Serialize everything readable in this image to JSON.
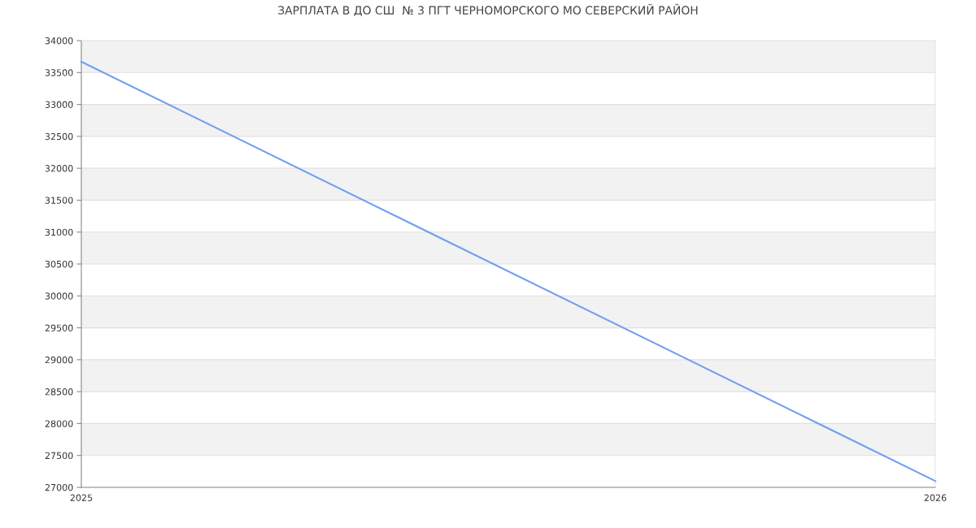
{
  "chart_data": {
    "type": "line",
    "title": "ЗАРПЛАТА В ДО СШ  № 3 ПГТ ЧЕРНОМОРСКОГО МО СЕВЕРСКИЙ РАЙОН",
    "x": [
      2025,
      2026
    ],
    "series": [
      {
        "color": "#6f9ff5",
        "values": [
          33670,
          27100
        ]
      }
    ],
    "xlim": [
      2025,
      2026
    ],
    "xticks": [
      2025,
      2026
    ],
    "ylim": [
      27000,
      34000
    ],
    "yticks": [
      27000,
      27500,
      28000,
      28500,
      29000,
      29500,
      30000,
      30500,
      31000,
      31500,
      32000,
      32500,
      33000,
      33500,
      34000
    ],
    "grid": "y",
    "marker": "none",
    "line_style": "solid"
  }
}
